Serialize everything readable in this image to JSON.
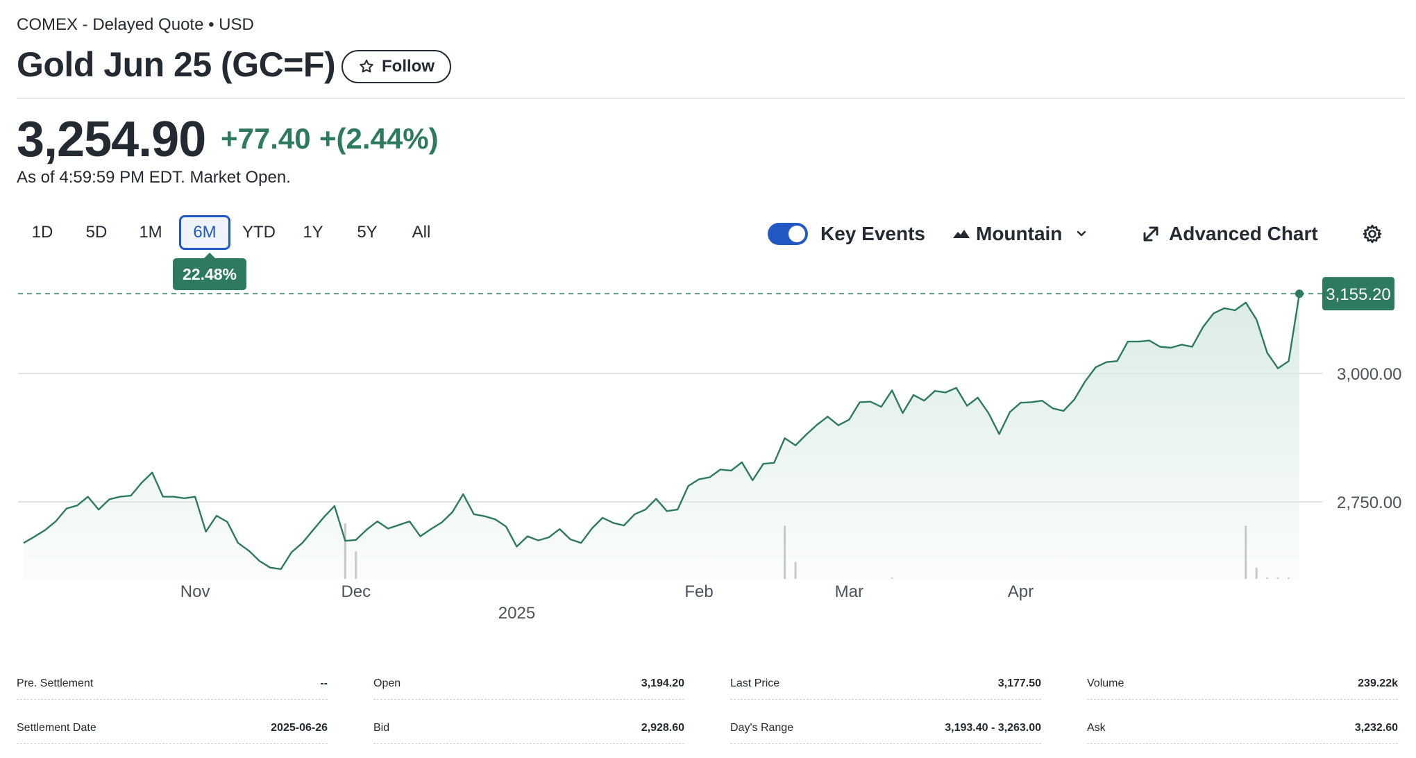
{
  "header": {
    "meta": "COMEX - Delayed Quote • USD",
    "title": "Gold Jun 25 (GC=F)",
    "follow_label": "Follow"
  },
  "quote": {
    "price": "3,254.90",
    "change": "+77.40",
    "change_pct": "+(2.44%)",
    "as_of": "As of 4:59:59 PM EDT. Market Open."
  },
  "ranges": {
    "items": [
      "1D",
      "5D",
      "1M",
      "6M",
      "YTD",
      "1Y",
      "5Y",
      "All"
    ],
    "active": "6M",
    "active_change": "22.48%"
  },
  "tools": {
    "key_events_label": "Key Events",
    "key_events_on": true,
    "chart_type_label": "Mountain",
    "advanced_label": "Advanced Chart"
  },
  "colors": {
    "accent": "#2158c4",
    "positive": "#2d7a5f",
    "line": "#2d7a5f",
    "area_top": "#d9ebe3"
  },
  "chart_data": {
    "type": "area",
    "ylim": [
      2600,
      3200
    ],
    "yticks": [
      "3,000.00",
      "2,750.00"
    ],
    "ytick_values": [
      3000,
      2750
    ],
    "last_label": "3,155.20",
    "last_value": 3155.2,
    "xticks": [
      "Nov",
      "Dec",
      "Feb",
      "Mar",
      "Apr"
    ],
    "xticks_at": [
      16,
      31,
      63,
      77,
      93
    ],
    "year_label": "2025",
    "year_at": 46,
    "y": [
      2670,
      2682,
      2695,
      2712,
      2737,
      2743,
      2760,
      2735,
      2755,
      2760,
      2762,
      2787,
      2807,
      2760,
      2760,
      2757,
      2760,
      2692,
      2723,
      2711,
      2670,
      2655,
      2635,
      2622,
      2619,
      2652,
      2670,
      2695,
      2720,
      2742,
      2674,
      2676,
      2696,
      2712,
      2698,
      2705,
      2712,
      2683,
      2697,
      2710,
      2730,
      2765,
      2726,
      2722,
      2716,
      2702,
      2663,
      2683,
      2675,
      2681,
      2697,
      2677,
      2670,
      2698,
      2719,
      2709,
      2704,
      2726,
      2735,
      2756,
      2732,
      2735,
      2781,
      2794,
      2798,
      2813,
      2811,
      2827,
      2792,
      2824,
      2826,
      2874,
      2860,
      2881,
      2900,
      2916,
      2899,
      2910,
      2944,
      2945,
      2935,
      2967,
      2923,
      2958,
      2947,
      2966,
      2963,
      2972,
      2937,
      2953,
      2923,
      2882,
      2925,
      2943,
      2944,
      2947,
      2932,
      2927,
      2949,
      2984,
      3012,
      3022,
      3024,
      3062,
      3062,
      3064,
      3052,
      3050,
      3056,
      3052,
      3090,
      3117,
      3127,
      3123,
      3138,
      3105,
      3040,
      3010,
      3024,
      3155.2
    ],
    "volume": [
      0,
      0,
      0,
      0,
      0,
      0,
      0,
      0,
      0,
      0,
      0,
      0,
      0,
      0,
      0,
      0,
      0,
      0,
      0,
      0,
      0,
      0,
      0,
      0,
      0,
      0,
      0,
      0,
      0,
      0,
      125,
      62,
      0,
      0,
      0,
      0,
      0,
      0,
      0,
      0,
      0,
      0,
      0,
      0,
      0,
      0,
      0,
      0,
      0,
      0,
      0,
      0,
      0,
      0,
      0,
      0,
      0,
      0,
      0,
      0,
      0,
      0,
      0,
      0,
      0,
      0,
      0,
      0,
      0,
      0,
      0,
      120,
      38,
      0,
      0,
      0,
      0,
      0,
      0,
      0,
      0,
      3,
      0,
      0,
      0,
      0,
      0,
      0,
      0,
      0,
      0,
      0,
      0,
      0,
      0,
      0,
      0,
      0,
      0,
      0,
      0,
      0,
      0,
      0,
      0,
      0,
      0,
      0,
      0,
      0,
      0,
      0,
      0,
      0,
      120,
      25,
      3,
      3,
      3,
      0
    ]
  },
  "stats": [
    [
      {
        "k": "Pre. Settlement",
        "v": "--"
      },
      {
        "k": "Open",
        "v": "3,194.20"
      },
      {
        "k": "Last Price",
        "v": "3,177.50"
      },
      {
        "k": "Volume",
        "v": "239.22k"
      }
    ],
    [
      {
        "k": "Settlement Date",
        "v": "2025-06-26"
      },
      {
        "k": "Bid",
        "v": "2,928.60"
      },
      {
        "k": "Day's Range",
        "v": "3,193.40 - 3,263.00"
      },
      {
        "k": "Ask",
        "v": "3,232.60"
      }
    ]
  ]
}
